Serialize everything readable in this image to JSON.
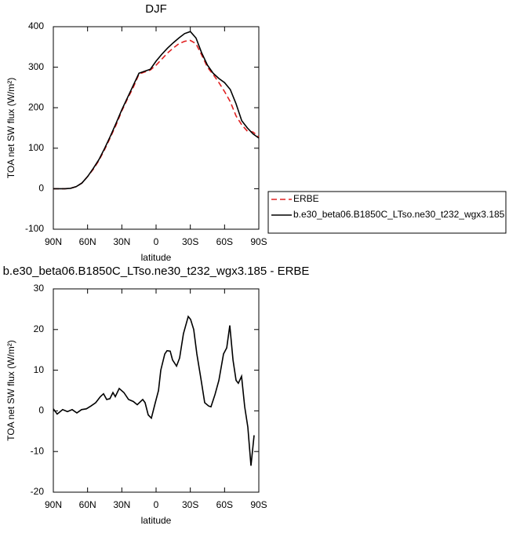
{
  "chart_data": [
    {
      "type": "line",
      "title": "DJF",
      "xlabel": "latitude",
      "ylabel": "TOA net SW flux (W/m²)",
      "x": [
        90,
        85,
        80,
        75,
        70,
        65,
        60,
        55,
        50,
        45,
        40,
        35,
        30,
        25,
        20,
        15,
        10,
        5,
        0,
        -5,
        -10,
        -15,
        -20,
        -25,
        -30,
        -35,
        -40,
        -45,
        -50,
        -55,
        -60,
        -65,
        -70,
        -75,
        -80,
        -85,
        -90
      ],
      "series": [
        {
          "name": "ERBE",
          "color": "#e02020",
          "dash": "dashed",
          "values": [
            0,
            0,
            0,
            1,
            5,
            14,
            30,
            48,
            70,
            97,
            127,
            158,
            192,
            222,
            250,
            283,
            288,
            293,
            305,
            320,
            335,
            347,
            358,
            364,
            366,
            358,
            330,
            300,
            282,
            262,
            240,
            215,
            180,
            158,
            142,
            140,
            128
          ]
        },
        {
          "name": "b.e30_beta06.B1850C_LTso.ne30_t232_wgx3.185",
          "color": "#000000",
          "dash": "solid",
          "values": [
            0,
            0,
            0,
            1,
            5,
            14,
            30,
            50,
            72,
            100,
            130,
            162,
            195,
            225,
            255,
            285,
            290,
            295,
            315,
            332,
            347,
            360,
            372,
            383,
            388,
            372,
            335,
            305,
            285,
            272,
            262,
            245,
            210,
            168,
            150,
            135,
            125
          ]
        }
      ],
      "xlim": [
        90,
        -90
      ],
      "xticks": [
        {
          "value": 90,
          "label": "90N"
        },
        {
          "value": 60,
          "label": "60N"
        },
        {
          "value": 30,
          "label": "30N"
        },
        0,
        {
          "value": -30,
          "label": "30S"
        },
        {
          "value": -60,
          "label": "60S"
        },
        {
          "value": -90,
          "label": "90S"
        }
      ],
      "ylim": [
        -100,
        400
      ],
      "yticks": [
        -100,
        0,
        100,
        200,
        300,
        400
      ],
      "legend": "right"
    },
    {
      "type": "line",
      "title": "b.e30_beta06.B1850C_LTso.ne30_t232_wgx3.185 - ERBE",
      "xlabel": "latitude",
      "ylabel": "TOA net SW flux (W/m²)",
      "x": [
        90,
        86.6,
        81.8,
        77.6,
        73.5,
        69.4,
        65.3,
        61.1,
        57,
        52.9,
        48.8,
        46,
        43.3,
        40.5,
        37.8,
        35.7,
        32.3,
        28.2,
        24.1,
        19.9,
        16.5,
        11.7,
        9.6,
        6.9,
        4.1,
        0.7,
        -2.1,
        -4.1,
        -7.6,
        -9.6,
        -12.4,
        -14.4,
        -17.9,
        -20.6,
        -24,
        -28.2,
        -30.2,
        -33,
        -35.7,
        -39.2,
        -42.6,
        -46,
        -48.1,
        -51.6,
        -55,
        -59.1,
        -61.9,
        -64.6,
        -67.4,
        -70.1,
        -72.1,
        -74.9,
        -77.6,
        -80.4,
        -83.1,
        -85.9
      ],
      "values": [
        0.5,
        -0.8,
        0.3,
        -0.2,
        0.3,
        -0.5,
        0.3,
        0.5,
        1.2,
        2,
        3.5,
        4.2,
        2.8,
        3,
        4.5,
        3.5,
        5.5,
        4.5,
        2.8,
        2.3,
        1.5,
        2.8,
        2,
        -1,
        -1.8,
        2,
        5,
        10,
        14,
        14.8,
        14.7,
        12.5,
        11,
        13,
        19,
        23.2,
        22.5,
        20,
        14,
        8,
        2,
        1.2,
        1,
        4,
        7.5,
        14,
        15.5,
        21,
        12.5,
        7.5,
        6.8,
        8.5,
        1,
        -4,
        -13.5,
        -6
      ],
      "color": "#000000",
      "xlim": [
        90,
        -90
      ],
      "xticks": [
        {
          "value": 90,
          "label": "90N"
        },
        {
          "value": 60,
          "label": "60N"
        },
        {
          "value": 30,
          "label": "30N"
        },
        0,
        {
          "value": -30,
          "label": "30S"
        },
        {
          "value": -60,
          "label": "60S"
        },
        {
          "value": -90,
          "label": "90S"
        }
      ],
      "ylim": [
        -20,
        30
      ],
      "yticks": [
        -20,
        -10,
        0,
        10,
        20,
        30
      ]
    }
  ]
}
